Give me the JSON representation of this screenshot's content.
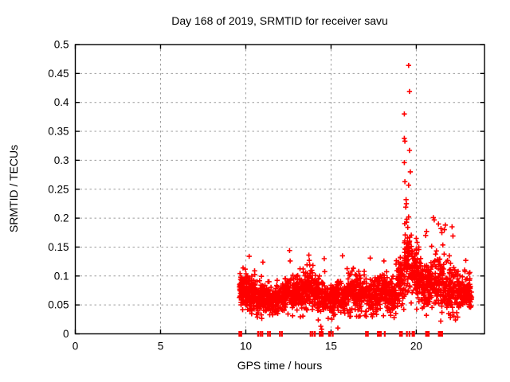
{
  "figure": {
    "background": "#ffffff",
    "border_color": "#000000",
    "text_color": "#000000"
  },
  "chart_data": {
    "type": "scatter",
    "title": "Day 168 of 2019, SRMTID for receiver savu",
    "xlabel": "GPS time / hours",
    "ylabel": "SRMTID / TECUs",
    "xlim": [
      0,
      24
    ],
    "ylim": [
      0,
      0.5
    ],
    "xticks": [
      {
        "value": 0,
        "label": "0"
      },
      {
        "value": 5,
        "label": "5"
      },
      {
        "value": 10,
        "label": "10"
      },
      {
        "value": 15,
        "label": "15"
      },
      {
        "value": 20,
        "label": "20"
      }
    ],
    "yticks": [
      {
        "value": 0,
        "label": "0"
      },
      {
        "value": 0.05,
        "label": "0.05"
      },
      {
        "value": 0.1,
        "label": "0.1"
      },
      {
        "value": 0.15,
        "label": "0.15"
      },
      {
        "value": 0.2,
        "label": "0.2"
      },
      {
        "value": 0.25,
        "label": "0.25"
      },
      {
        "value": 0.3,
        "label": "0.3"
      },
      {
        "value": 0.35,
        "label": "0.35"
      },
      {
        "value": 0.4,
        "label": "0.4"
      },
      {
        "value": 0.45,
        "label": "0.45"
      },
      {
        "value": 0.5,
        "label": "0.5"
      }
    ],
    "grid": {
      "show": true,
      "color": "#9c9c9c",
      "dash": "2.5,3.5"
    },
    "legend": null,
    "marker": {
      "shape": "plus",
      "color": "#ff0000",
      "size": 6.4,
      "stroke_width": 1.6
    },
    "series_name": "SRMTID",
    "seed": 2019168,
    "band_summary": "dense band of 1-Hz SRMTID samples 0.04-0.12 TECU from 9.6h to 23.2h; enhancement 19.3-20.3h; vertical outlier streak at 19.3-19.65h peaking 0.464",
    "bands": [
      [
        9.62,
        10.1,
        105,
        0.074,
        0.016
      ],
      [
        10.1,
        10.6,
        105,
        0.07,
        0.015
      ],
      [
        10.6,
        11.1,
        100,
        0.063,
        0.014
      ],
      [
        11.1,
        11.7,
        105,
        0.059,
        0.012
      ],
      [
        11.7,
        12.3,
        100,
        0.063,
        0.013
      ],
      [
        12.3,
        12.9,
        100,
        0.069,
        0.015
      ],
      [
        12.9,
        13.5,
        100,
        0.071,
        0.016
      ],
      [
        13.5,
        14.1,
        100,
        0.075,
        0.017
      ],
      [
        14.1,
        14.7,
        90,
        0.068,
        0.016
      ],
      [
        14.7,
        15.3,
        85,
        0.059,
        0.013
      ],
      [
        15.3,
        15.9,
        85,
        0.064,
        0.014
      ],
      [
        15.9,
        16.5,
        95,
        0.072,
        0.016
      ],
      [
        16.5,
        17.1,
        95,
        0.069,
        0.015
      ],
      [
        17.1,
        17.7,
        90,
        0.066,
        0.014
      ],
      [
        17.7,
        18.3,
        95,
        0.073,
        0.016
      ],
      [
        18.3,
        18.8,
        80,
        0.064,
        0.015
      ],
      [
        18.8,
        19.3,
        85,
        0.088,
        0.02
      ],
      [
        19.3,
        19.8,
        95,
        0.118,
        0.028
      ],
      [
        19.8,
        20.3,
        90,
        0.105,
        0.024
      ],
      [
        20.3,
        20.9,
        95,
        0.084,
        0.02
      ],
      [
        20.9,
        21.6,
        100,
        0.094,
        0.028
      ],
      [
        21.6,
        22.3,
        100,
        0.079,
        0.024
      ],
      [
        22.3,
        23.0,
        100,
        0.071,
        0.017
      ],
      [
        23.0,
        23.25,
        45,
        0.067,
        0.015
      ]
    ],
    "outliers": [
      [
        19.55,
        0.464
      ],
      [
        19.6,
        0.419
      ],
      [
        19.3,
        0.38
      ],
      [
        19.3,
        0.338
      ],
      [
        19.33,
        0.333
      ],
      [
        19.6,
        0.317
      ],
      [
        19.3,
        0.296
      ],
      [
        19.65,
        0.28
      ],
      [
        19.33,
        0.263
      ],
      [
        19.55,
        0.257
      ],
      [
        19.4,
        0.232
      ],
      [
        19.42,
        0.225
      ],
      [
        19.38,
        0.219
      ],
      [
        19.55,
        0.202
      ],
      [
        19.45,
        0.198
      ],
      [
        19.43,
        0.193
      ],
      [
        19.5,
        0.184
      ],
      [
        19.35,
        0.171
      ],
      [
        19.62,
        0.167
      ],
      [
        20.0,
        0.165
      ],
      [
        20.05,
        0.158
      ],
      [
        21.0,
        0.201
      ],
      [
        21.05,
        0.197
      ],
      [
        10.2,
        0.134
      ],
      [
        11.0,
        0.124
      ],
      [
        12.57,
        0.144
      ],
      [
        12.6,
        0.126
      ],
      [
        13.7,
        0.136
      ],
      [
        13.72,
        0.127
      ],
      [
        13.75,
        0.119
      ],
      [
        14.6,
        0.13
      ],
      [
        15.67,
        0.135
      ],
      [
        16.3,
        0.113
      ],
      [
        17.3,
        0.131
      ],
      [
        18.1,
        0.126
      ],
      [
        20.55,
        0.17
      ],
      [
        20.6,
        0.177
      ],
      [
        21.3,
        0.19
      ],
      [
        21.45,
        0.182
      ],
      [
        21.5,
        0.175
      ],
      [
        21.65,
        0.18
      ],
      [
        21.7,
        0.188
      ],
      [
        22.1,
        0.185
      ],
      [
        22.15,
        0.169
      ],
      [
        22.9,
        0.127
      ],
      [
        14.25,
        0.024
      ],
      [
        14.4,
        0.013
      ],
      [
        14.45,
        0.008
      ],
      [
        15.4,
        0.01
      ],
      [
        16.1,
        0.03
      ],
      [
        18.5,
        0.032
      ],
      [
        18.7,
        0.028
      ],
      [
        21.9,
        0.035
      ],
      [
        22.0,
        0.028
      ],
      [
        22.3,
        0.024
      ]
    ],
    "zeros": [
      [
        9.68,
        0.22
      ],
      [
        10.72,
        0.05
      ],
      [
        10.85,
        0.05
      ],
      [
        10.97,
        0.05
      ],
      [
        11.3,
        0.05
      ],
      [
        11.42,
        0.05
      ],
      [
        12.0,
        0.05
      ],
      [
        12.12,
        0.05
      ],
      [
        13.8,
        0.05
      ],
      [
        13.92,
        0.05
      ],
      [
        14.05,
        0.05
      ],
      [
        14.42,
        0.28
      ],
      [
        14.92,
        0.18
      ],
      [
        15.1,
        0.05
      ],
      [
        17.05,
        0.05
      ],
      [
        17.16,
        0.05
      ],
      [
        17.83,
        0.28
      ],
      [
        18.15,
        0.05
      ],
      [
        19.1,
        0.22
      ],
      [
        19.45,
        0.05
      ],
      [
        19.6,
        0.05
      ],
      [
        19.78,
        0.05
      ],
      [
        19.87,
        0.05
      ],
      [
        20.65,
        0.26
      ],
      [
        21.42,
        0.3
      ]
    ]
  }
}
